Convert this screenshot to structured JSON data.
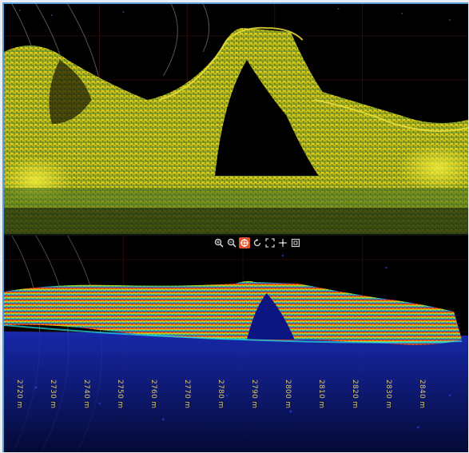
{
  "viewer": {
    "top_view": {
      "name": "top-point-cloud-view"
    },
    "bottom_view": {
      "name": "bottom-point-cloud-view"
    }
  },
  "toolbar": {
    "tools": [
      {
        "id": "zoom-in",
        "icon": "zoom-in-icon",
        "active": false
      },
      {
        "id": "zoom-out",
        "icon": "zoom-out-icon",
        "active": false
      },
      {
        "id": "pan",
        "icon": "pan-icon",
        "active": true
      },
      {
        "id": "rotate",
        "icon": "rotate-icon",
        "active": false
      },
      {
        "id": "fit",
        "icon": "fit-extent-icon",
        "active": false
      },
      {
        "id": "move",
        "icon": "move-icon",
        "active": false
      },
      {
        "id": "fullscreen",
        "icon": "fullscreen-icon",
        "active": false
      }
    ],
    "active_color": "#e1542a"
  },
  "scale_labels": [
    "2720 m",
    "2730 m",
    "2740 m",
    "2750 m",
    "2760 m",
    "2770 m",
    "2780 m",
    "2790 m",
    "2800 m",
    "2810 m",
    "2820 m",
    "2830 m",
    "2840 m"
  ],
  "colors": {
    "top_points": "#d9cf1c",
    "grid": "#5a1a1a",
    "bottom_high": "#e21b0c",
    "bottom_mid": "#d6d21a",
    "bottom_low": "#1a3bd6"
  }
}
